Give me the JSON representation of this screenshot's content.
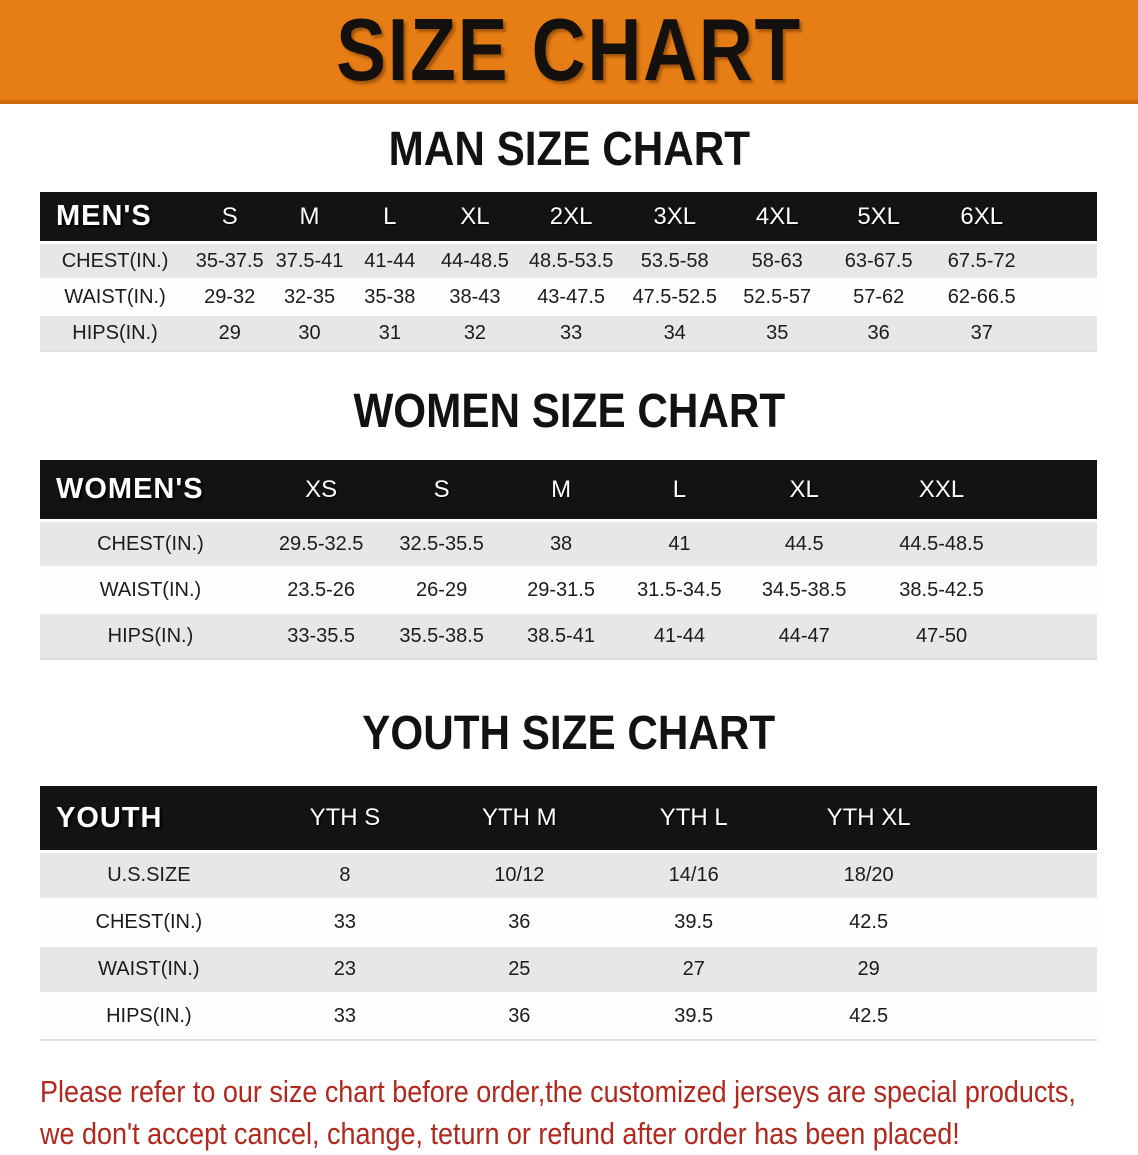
{
  "banner": {
    "title": "SIZE CHART"
  },
  "colors": {
    "banner_bg": "#e67d15",
    "table_header_bg": "#151212",
    "row_stripe": "#e7e7e7",
    "footer_text": "#b0281e"
  },
  "sections": [
    {
      "id": "men",
      "heading": "MAN SIZE CHART",
      "table": {
        "header": [
          "MEN'S",
          "S",
          "M",
          "L",
          "XL",
          "2XL",
          "3XL",
          "4XL",
          "5XL",
          "6XL"
        ],
        "rows": [
          [
            "CHEST(IN.)",
            "35-37.5",
            "37.5-41",
            "41-44",
            "44-48.5",
            "48.5-53.5",
            "53.5-58",
            "58-63",
            "63-67.5",
            "67.5-72"
          ],
          [
            "WAIST(IN.)",
            "29-32",
            "32-35",
            "35-38",
            "38-43",
            "43-47.5",
            "47.5-52.5",
            "52.5-57",
            "57-62",
            "62-66.5"
          ],
          [
            "HIPS(IN.)",
            "29",
            "30",
            "31",
            "32",
            "33",
            "34",
            "35",
            "36",
            "37"
          ]
        ]
      }
    },
    {
      "id": "women",
      "heading": "WOMEN SIZE CHART",
      "table": {
        "header": [
          "WOMEN'S",
          "XS",
          "S",
          "M",
          "L",
          "XL",
          "XXL"
        ],
        "rows": [
          [
            "CHEST(IN.)",
            "29.5-32.5",
            "32.5-35.5",
            "38",
            "41",
            "44.5",
            "44.5-48.5"
          ],
          [
            "WAIST(IN.)",
            "23.5-26",
            "26-29",
            "29-31.5",
            "31.5-34.5",
            "34.5-38.5",
            "38.5-42.5"
          ],
          [
            "HIPS(IN.)",
            "33-35.5",
            "35.5-38.5",
            "38.5-41",
            "41-44",
            "44-47",
            "47-50"
          ]
        ]
      }
    },
    {
      "id": "youth",
      "heading": "YOUTH SIZE CHART",
      "table": {
        "header": [
          "YOUTH",
          "YTH S",
          "YTH M",
          "YTH L",
          "YTH XL"
        ],
        "rows": [
          [
            "U.S.SIZE",
            "8",
            "10/12",
            "14/16",
            "18/20"
          ],
          [
            "CHEST(IN.)",
            "33",
            "36",
            "39.5",
            "42.5"
          ],
          [
            "WAIST(IN.)",
            "23",
            "25",
            "27",
            "29"
          ],
          [
            "HIPS(IN.)",
            "33",
            "36",
            "39.5",
            "42.5"
          ]
        ]
      }
    }
  ],
  "footer": {
    "lines": [
      "Please refer to our size chart before order,the customized jerseys are special products,",
      "we don't accept cancel, change, teturn or refund after order has been placed!"
    ]
  }
}
